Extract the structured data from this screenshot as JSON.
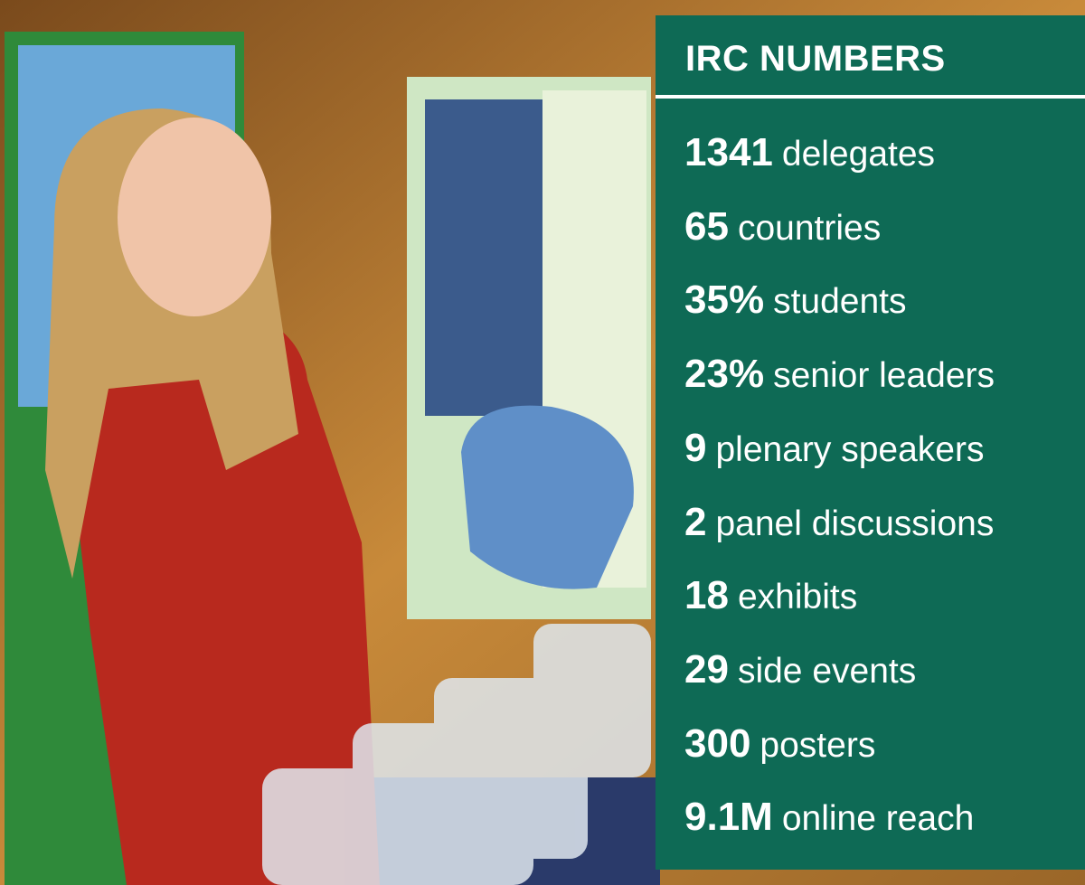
{
  "title": "IRC NUMBERS",
  "items": [
    {
      "number": "1341",
      "label": "delegates"
    },
    {
      "number": "65",
      "label": "countries"
    },
    {
      "number": "35%",
      "label": "students"
    },
    {
      "number": "23%",
      "label": "senior leaders"
    },
    {
      "number": "9",
      "label": "plenary speakers"
    },
    {
      "number": "2",
      "label": "panel discussions"
    },
    {
      "number": "18",
      "label": "exhibits"
    },
    {
      "number": "29",
      "label": "side events"
    },
    {
      "number": "300",
      "label": "posters"
    },
    {
      "number": "9.1M",
      "label": "online reach"
    }
  ]
}
